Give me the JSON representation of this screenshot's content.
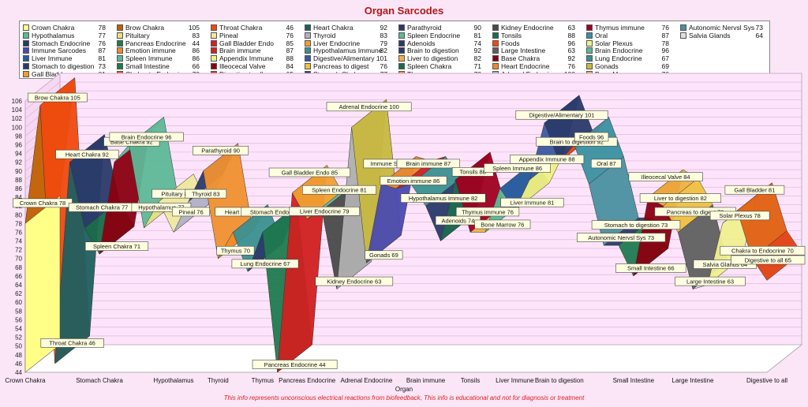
{
  "chart_data": {
    "type": "area",
    "title": "Organ Sarcodes",
    "xlabel": "Organ",
    "ylabel": "",
    "ylim": [
      44,
      106
    ],
    "ytick_step": 2,
    "grid": true,
    "legend_position": "top",
    "footer": "This info represents unconscious electrical reactions from biofeedback, This info is educational and  not  for diagnosis or treatment",
    "categories": [
      "Crown Chakra",
      "Stomach Chakra",
      "Hypothalamus",
      "Thyroid",
      "Thymus",
      "Pancreas  Endocrine",
      "Adrenal  Endocrine",
      "Brain  immune",
      "Tonsils",
      "Liver  Immune",
      "Brain to digestion",
      "Small Intestine",
      "Large Intestine",
      "Digestive to all"
    ],
    "series": [
      {
        "name": "Crown Chakra",
        "value": 78,
        "color": "#ffff88"
      },
      {
        "name": "Brow Chakra",
        "value": 105,
        "color": "#c06000"
      },
      {
        "name": "Throat Chakra",
        "value": 46,
        "color": "#f04a10"
      },
      {
        "name": "Heart  Chakra",
        "value": 92,
        "color": "#1f5f60"
      },
      {
        "name": "Stomach Chakra",
        "value": 77,
        "color": "#2a3a6a"
      },
      {
        "name": "Spleen Chakra",
        "value": 71,
        "color": "#1a6a4a"
      },
      {
        "name": "Base Chakra",
        "value": 92,
        "color": "#8a0010"
      },
      {
        "name": "Brain  Endocrine",
        "value": 96,
        "color": "#5fb898"
      },
      {
        "name": "Hypothalamus",
        "value": 77,
        "color": "#5fb898"
      },
      {
        "name": "Pituitary",
        "value": 83,
        "color": "#e9e080"
      },
      {
        "name": "Pineal",
        "value": 76,
        "color": "#f0e8a0"
      },
      {
        "name": "Thyroid",
        "value": 83,
        "color": "#b0b0c8"
      },
      {
        "name": "Parathyroid",
        "value": 90,
        "color": "#2a3a6a"
      },
      {
        "name": "Thymus",
        "value": 70,
        "color": "#f09030"
      },
      {
        "name": "Heart Endocrine",
        "value": 76,
        "color": "#f08a2a"
      },
      {
        "name": "Lung Endocrine",
        "value": 67,
        "color": "#3a9090"
      },
      {
        "name": "Stomach Endocrine",
        "value": 76,
        "color": "#2a3a6a"
      },
      {
        "name": "Pancreas  Endocrine",
        "value": 44,
        "color": "#1f7a50"
      },
      {
        "name": "Gall Bladder  Endo",
        "value": 85,
        "color": "#d02020"
      },
      {
        "name": "Liver Endocrine",
        "value": 79,
        "color": "#f0a030"
      },
      {
        "name": "Spleen Endocrine",
        "value": 81,
        "color": "#5fb898"
      },
      {
        "name": "Kidney  Endocrine",
        "value": 63,
        "color": "#4a4a4a"
      },
      {
        "name": "Adrenal  Endocrine",
        "value": 100,
        "color": "#b0b0b0"
      },
      {
        "name": "Gonads",
        "value": 69,
        "color": "#c8b840"
      },
      {
        "name": "Immune Sarcodes",
        "value": 87,
        "color": "#4a4ab0"
      },
      {
        "name": "Emotion immune",
        "value": 86,
        "color": "#f08a2a"
      },
      {
        "name": "Brain  immune",
        "value": 87,
        "color": "#d02020"
      },
      {
        "name": "Hypothalamus Immune",
        "value": 82,
        "color": "#3a9090"
      },
      {
        "name": "Adenoids",
        "value": 74,
        "color": "#2a3a6a"
      },
      {
        "name": "Tonsils",
        "value": 88,
        "color": "#1f6a50"
      },
      {
        "name": "Thymus immune",
        "value": 76,
        "color": "#a00020"
      },
      {
        "name": "Bone Marrow",
        "value": 76,
        "color": "#f0b040"
      },
      {
        "name": "Spleen  Immune",
        "value": 86,
        "color": "#5fb898"
      },
      {
        "name": "Liver  Immune",
        "value": 81,
        "color": "#2a5aa0"
      },
      {
        "name": "Appendix  Immune",
        "value": 88,
        "color": "#f0f080"
      },
      {
        "name": "Digestive/Alimentary",
        "value": 101,
        "color": "#3a5aa0"
      },
      {
        "name": "Brain to digestion",
        "value": 92,
        "color": "#2a3a6a"
      },
      {
        "name": "Foods",
        "value": 96,
        "color": "#f04a10"
      },
      {
        "name": "Oral",
        "value": 87,
        "color": "#3a90a0"
      },
      {
        "name": "Autonomic Nervsl Sys",
        "value": 73,
        "color": "#4a90a0"
      },
      {
        "name": "Stomach to digestion",
        "value": 73,
        "color": "#2a3a6a"
      },
      {
        "name": "Small Intestine",
        "value": 66,
        "color": "#1f7a50"
      },
      {
        "name": "Illeocecal Valve",
        "value": 84,
        "color": "#8a0010"
      },
      {
        "name": "Liver to digestion",
        "value": 82,
        "color": "#f0b040"
      },
      {
        "name": "Pancreas to digest",
        "value": 76,
        "color": "#f0c040"
      },
      {
        "name": "Large Intestine",
        "value": 63,
        "color": "#606060"
      },
      {
        "name": "Salvia Glands",
        "value": 64,
        "color": "#e0e0e0"
      },
      {
        "name": "Solar Plexus",
        "value": 78,
        "color": "#f0f090"
      },
      {
        "name": "Gall Bladder",
        "value": 81,
        "color": "#f0a030"
      },
      {
        "name": "Chakra to Endocrine",
        "value": 70,
        "color": "#e06010"
      },
      {
        "name": "Digestive to all",
        "value": 65,
        "color": "#e04010"
      }
    ],
    "legend_order": [
      "Crown Chakra",
      "Hypothalamus",
      "Stomach Endocrine",
      "Immune Sarcodes",
      "Liver  Immune",
      "Stomach to digestion",
      "Gall Bladder",
      "Brow Chakra",
      "Pituitary",
      "Pancreas  Endocrine",
      "Emotion immune",
      "Spleen  Immune",
      "Small Intestine",
      "Chakra to Endocrine",
      "Throat Chakra",
      "Pineal",
      "Gall Bladder  Endo",
      "Brain  immune",
      "Appendix  Immune",
      "Illeocecal Valve",
      "Digestive to all",
      "Heart  Chakra",
      "Thyroid",
      "Liver Endocrine",
      "Hypothalamus Immune",
      "Digestive/Alimentary",
      "Pancreas to digest",
      "Stomach Chakra",
      "Parathyroid",
      "Spleen Endocrine",
      "Adenoids",
      "Brain to digestion",
      "Liver to digestion",
      "Spleen Chakra",
      "Thymus",
      "Kidney  Endocrine",
      "Tonsils",
      "Foods",
      "Large Intestine",
      "Base Chakra",
      "Heart Endocrine",
      "Adrenal  Endocrine",
      "Thymus immune",
      "Oral",
      "Solar Plexus",
      "Brain  Endocrine",
      "Lung Endocrine",
      "Gonads",
      "Bone Marrow",
      "Autonomic Nervsl Sys",
      "Salvia Glands"
    ]
  }
}
